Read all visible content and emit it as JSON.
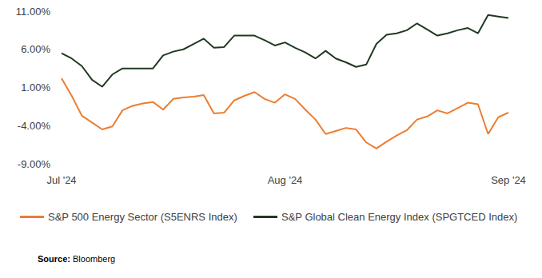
{
  "chart_data": {
    "type": "line",
    "categories": [
      "Jul '24",
      null,
      null,
      null,
      null,
      null,
      null,
      null,
      null,
      null,
      null,
      null,
      null,
      null,
      null,
      null,
      null,
      null,
      null,
      null,
      null,
      null,
      "Aug '24",
      null,
      null,
      null,
      null,
      null,
      null,
      null,
      null,
      null,
      null,
      null,
      null,
      null,
      null,
      null,
      null,
      null,
      null,
      null,
      null,
      null,
      "Sep '24"
    ],
    "series": [
      {
        "name": "S&P 500 Energy Sector (S5ENRS Index)",
        "color": "#ED7D31",
        "values": [
          2.2,
          -0.1,
          -2.7,
          -3.6,
          -4.5,
          -4.1,
          -2.0,
          -1.4,
          -1.1,
          -0.9,
          -1.9,
          -0.5,
          -0.3,
          -0.2,
          0.0,
          -2.4,
          -2.3,
          -0.7,
          -0.1,
          0.4,
          -0.5,
          -1.0,
          0.1,
          -0.5,
          -1.9,
          -3.2,
          -5.1,
          -4.7,
          -4.3,
          -4.5,
          -6.2,
          -7.0,
          -6.1,
          -5.3,
          -4.6,
          -3.2,
          -2.8,
          -2.0,
          -2.4,
          -1.7,
          -1.0,
          -1.2,
          -5.1,
          -2.9,
          -2.3
        ]
      },
      {
        "name": "S&P Global Clean Energy Index (SPGTCED Index)",
        "color": "#1F3A22",
        "values": [
          5.5,
          4.8,
          3.8,
          2.0,
          1.1,
          2.7,
          3.5,
          3.5,
          3.5,
          3.5,
          5.2,
          5.7,
          6.0,
          6.7,
          7.4,
          6.2,
          6.3,
          7.8,
          7.8,
          7.8,
          7.2,
          6.5,
          6.9,
          6.2,
          5.6,
          4.8,
          5.8,
          4.8,
          4.3,
          3.7,
          4.0,
          6.7,
          7.9,
          8.1,
          8.5,
          9.4,
          8.6,
          7.8,
          8.1,
          8.5,
          8.8,
          8.1,
          10.5,
          10.3,
          10.1
        ]
      }
    ],
    "ylim": [
      -9,
      11
    ],
    "yticks": [
      {
        "value": -9,
        "label": "-9.00%"
      },
      {
        "value": -4,
        "label": "-4.00%"
      },
      {
        "value": 1,
        "label": "1.00%"
      },
      {
        "value": 6,
        "label": "6.00%"
      },
      {
        "value": 11,
        "label": "11.00%"
      }
    ],
    "grid": false,
    "legend": "bottom",
    "source": "Source: Bloomberg"
  }
}
